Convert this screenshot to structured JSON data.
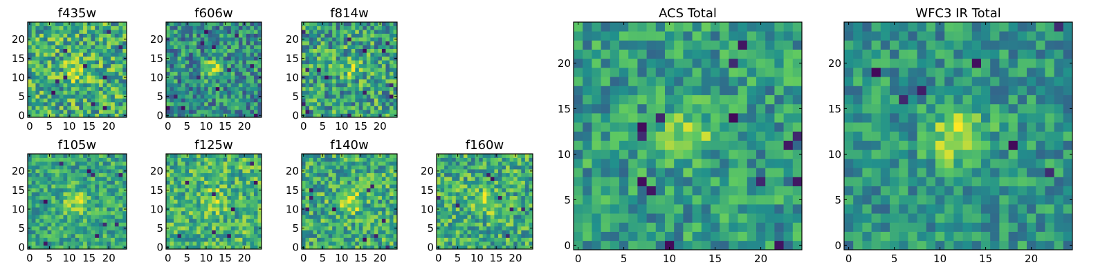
{
  "figure": {
    "colormap": "viridis",
    "colormap_stops": [
      "#440154",
      "#3b528b",
      "#21918c",
      "#5ec962",
      "#fde725"
    ]
  },
  "chart_data": [
    {
      "type": "heatmap",
      "title": "f435w",
      "grid_size": 25,
      "x_ticks": [
        "0",
        "5",
        "10",
        "15",
        "20"
      ],
      "y_ticks": [
        "0",
        "5",
        "10",
        "15",
        "20"
      ],
      "source": {
        "center": [
          12,
          12
        ],
        "sigma": 2.0,
        "peak": 0.35,
        "base": 0.62,
        "noise": 0.3,
        "dark_spots": 10,
        "seed": 435
      }
    },
    {
      "type": "heatmap",
      "title": "f606w",
      "grid_size": 25,
      "x_ticks": [
        "0",
        "5",
        "10",
        "15",
        "20"
      ],
      "y_ticks": [
        "0",
        "5",
        "10",
        "15",
        "20"
      ],
      "source": {
        "center": [
          12,
          12
        ],
        "sigma": 1.6,
        "peak": 0.45,
        "base": 0.5,
        "noise": 0.28,
        "dark_spots": 12,
        "seed": 606
      }
    },
    {
      "type": "heatmap",
      "title": "f814w",
      "grid_size": 25,
      "x_ticks": [
        "0",
        "5",
        "10",
        "15",
        "20"
      ],
      "y_ticks": [
        "0",
        "5",
        "10",
        "15",
        "20"
      ],
      "source": {
        "center": [
          12,
          12
        ],
        "sigma": 1.8,
        "peak": 0.25,
        "base": 0.58,
        "noise": 0.3,
        "dark_spots": 14,
        "seed": 814
      }
    },
    {
      "type": "heatmap",
      "title": "f105w",
      "grid_size": 25,
      "x_ticks": [
        "0",
        "5",
        "10",
        "15",
        "20"
      ],
      "y_ticks": [
        "0",
        "5",
        "10",
        "15",
        "20"
      ],
      "source": {
        "center": [
          12,
          12
        ],
        "sigma": 2.2,
        "peak": 0.3,
        "base": 0.6,
        "noise": 0.22,
        "dark_spots": 9,
        "seed": 105
      }
    },
    {
      "type": "heatmap",
      "title": "f125w",
      "grid_size": 25,
      "x_ticks": [
        "0",
        "5",
        "10",
        "15",
        "20"
      ],
      "y_ticks": [
        "0",
        "5",
        "10",
        "15",
        "20"
      ],
      "source": {
        "center": [
          12,
          12
        ],
        "sigma": 2.2,
        "peak": 0.25,
        "base": 0.65,
        "noise": 0.25,
        "dark_spots": 8,
        "seed": 125
      }
    },
    {
      "type": "heatmap",
      "title": "f140w",
      "grid_size": 25,
      "x_ticks": [
        "0",
        "5",
        "10",
        "15",
        "20"
      ],
      "y_ticks": [
        "0",
        "5",
        "10",
        "15",
        "20"
      ],
      "source": {
        "center": [
          12,
          12
        ],
        "sigma": 2.4,
        "peak": 0.25,
        "base": 0.62,
        "noise": 0.26,
        "dark_spots": 10,
        "seed": 140
      }
    },
    {
      "type": "heatmap",
      "title": "f160w",
      "grid_size": 25,
      "x_ticks": [
        "0",
        "5",
        "10",
        "15",
        "20"
      ],
      "y_ticks": [
        "0",
        "5",
        "10",
        "15",
        "20"
      ],
      "source": {
        "center": [
          12,
          12
        ],
        "sigma": 2.2,
        "peak": 0.3,
        "base": 0.62,
        "noise": 0.26,
        "dark_spots": 8,
        "seed": 160
      }
    },
    {
      "type": "heatmap",
      "title": "ACS Total",
      "grid_size": 25,
      "x_ticks": [
        "0",
        "5",
        "10",
        "15",
        "20"
      ],
      "y_ticks": [
        "0",
        "5",
        "10",
        "15",
        "20"
      ],
      "source": {
        "center": [
          12,
          12
        ],
        "sigma": 1.7,
        "peak": 0.4,
        "base": 0.55,
        "noise": 0.22,
        "dark_spots": 14,
        "seed": 1001
      }
    },
    {
      "type": "heatmap",
      "title": "WFC3 IR Total",
      "grid_size": 25,
      "x_ticks": [
        "0",
        "5",
        "10",
        "15",
        "20"
      ],
      "y_ticks": [
        "0",
        "5",
        "10",
        "15",
        "20"
      ],
      "source": {
        "center": [
          12,
          12
        ],
        "sigma": 2.2,
        "peak": 0.4,
        "base": 0.52,
        "noise": 0.2,
        "dark_spots": 7,
        "seed": 2002
      }
    }
  ]
}
